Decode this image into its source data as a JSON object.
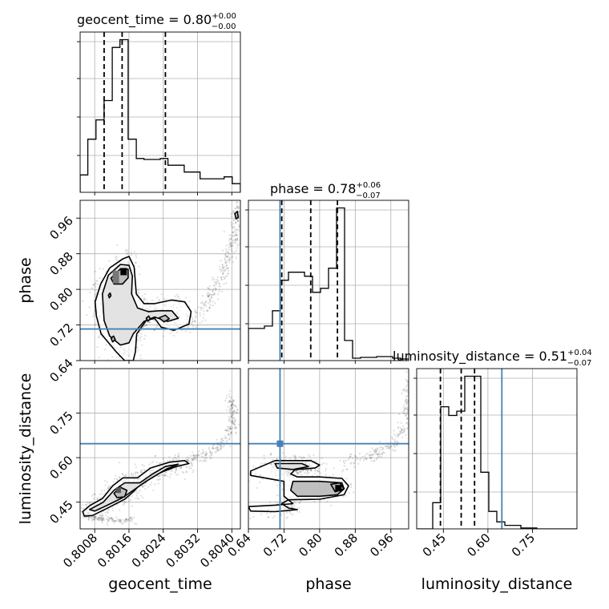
{
  "chart_data": {
    "type": "corner",
    "parameters": [
      "geocent_time",
      "phase",
      "luminosity_distance"
    ],
    "axis_labels": {
      "geocent_time": "geocent_time",
      "phase": "phase",
      "luminosity_distance": "luminosity_distance"
    },
    "ranges": {
      "geocent_time": [
        0.80046,
        0.8042
      ],
      "phase": [
        0.64,
        1.0
      ],
      "luminosity_distance": [
        0.36,
        0.9
      ]
    },
    "ticks": {
      "geocent_time": [
        0.8008,
        0.8016,
        0.8024,
        0.8032,
        0.804
      ],
      "phase": [
        0.64,
        0.72,
        0.8,
        0.88,
        0.96
      ],
      "luminosity_distance": [
        0.45,
        0.6,
        0.75
      ]
    },
    "tick_labels": {
      "geocent_time": [
        "0.8008",
        "0.8016",
        "0.8024",
        "0.8032",
        "0.8040"
      ],
      "phase": [
        "0.64",
        "0.72",
        "0.80",
        "0.88",
        "0.96"
      ],
      "luminosity_distance": [
        "0.45",
        "0.60",
        "0.75"
      ]
    },
    "truths": {
      "geocent_time": null,
      "phase": 0.711,
      "luminosity_distance": 0.647
    },
    "titles": [
      {
        "param": "geocent_time",
        "text": "geocent_time = 0.80",
        "sup": "+0.00",
        "sub": "−0.00"
      },
      {
        "param": "phase",
        "text": "phase = 0.78",
        "sup": "+0.06",
        "sub": "−0.07"
      },
      {
        "param": "luminosity_distance",
        "text": "luminosity_distance = 0.51",
        "sup": "+0.04",
        "sub": "−0.07"
      }
    ],
    "quantiles": {
      "geocent_time": [
        0.80102,
        0.80144,
        0.80245
      ],
      "phase": [
        0.715,
        0.78,
        0.84
      ],
      "luminosity_distance": [
        0.44,
        0.51,
        0.555
      ]
    },
    "histograms": {
      "geocent_time": {
        "edges": [
          0.80046,
          0.80064,
          0.80083,
          0.80102,
          0.80121,
          0.80139,
          0.80158,
          0.80177,
          0.80195,
          0.80214,
          0.80233,
          0.80251,
          0.8027,
          0.80289,
          0.80307,
          0.80326,
          0.80345,
          0.80364,
          0.80382,
          0.80401,
          0.8042
        ],
        "counts": [
          18,
          55,
          75,
          95,
          150,
          158,
          55,
          35,
          34,
          34,
          35,
          28,
          28,
          21,
          21,
          14,
          14,
          14,
          16,
          9
        ]
      },
      "phase": {
        "edges": [
          0.64,
          0.658,
          0.676,
          0.694,
          0.712,
          0.73,
          0.748,
          0.766,
          0.784,
          0.802,
          0.82,
          0.838,
          0.856,
          0.874,
          0.892,
          0.91,
          0.928,
          0.946,
          0.964,
          0.982,
          1.0
        ],
        "counts": [
          40,
          40,
          43,
          62,
          100,
          110,
          110,
          105,
          85,
          90,
          115,
          190,
          25,
          3,
          4,
          4,
          5,
          5,
          3,
          2
        ]
      },
      "luminosity_distance": {
        "edges": [
          0.36,
          0.387,
          0.414,
          0.441,
          0.468,
          0.495,
          0.522,
          0.549,
          0.576,
          0.603,
          0.63,
          0.657,
          0.684,
          0.711,
          0.738,
          0.765,
          0.792,
          0.819,
          0.846,
          0.873,
          0.9
        ],
        "counts": [
          0,
          0,
          30,
          140,
          130,
          135,
          175,
          175,
          65,
          20,
          8,
          4,
          4,
          1,
          1,
          0,
          0,
          0,
          0,
          0
        ]
      }
    },
    "contours": {
      "geocent_time_vs_phase": [
        [
          [
            0.80081,
            0.772
          ],
          [
            0.80094,
            0.812
          ],
          [
            0.80115,
            0.848
          ],
          [
            0.80145,
            0.868
          ],
          [
            0.8016,
            0.874
          ],
          [
            0.80172,
            0.85
          ],
          [
            0.80177,
            0.79
          ],
          [
            0.80195,
            0.768
          ],
          [
            0.8022,
            0.768
          ],
          [
            0.8026,
            0.776
          ],
          [
            0.8029,
            0.772
          ],
          [
            0.80305,
            0.75
          ],
          [
            0.803,
            0.722
          ],
          [
            0.80265,
            0.708
          ],
          [
            0.80235,
            0.715
          ],
          [
            0.8022,
            0.735
          ],
          [
            0.802,
            0.73
          ],
          [
            0.80178,
            0.7
          ],
          [
            0.80175,
            0.66
          ],
          [
            0.8017,
            0.64
          ],
          [
            0.8015,
            0.64
          ],
          [
            0.8013,
            0.66
          ],
          [
            0.80095,
            0.7
          ],
          [
            0.80084,
            0.74
          ],
          [
            0.80081,
            0.772
          ]
        ],
        [
          [
            0.80098,
            0.79
          ],
          [
            0.80112,
            0.832
          ],
          [
            0.8014,
            0.856
          ],
          [
            0.8016,
            0.854
          ],
          [
            0.80168,
            0.83
          ],
          [
            0.80166,
            0.79
          ],
          [
            0.8018,
            0.758
          ],
          [
            0.80205,
            0.75
          ],
          [
            0.8023,
            0.752
          ],
          [
            0.8026,
            0.752
          ],
          [
            0.80275,
            0.735
          ],
          [
            0.8025,
            0.728
          ],
          [
            0.8022,
            0.738
          ],
          [
            0.80195,
            0.728
          ],
          [
            0.8017,
            0.7
          ],
          [
            0.8016,
            0.68
          ],
          [
            0.8014,
            0.675
          ],
          [
            0.80115,
            0.695
          ],
          [
            0.80102,
            0.73
          ],
          [
            0.80098,
            0.79
          ]
        ],
        [
          [
            0.80118,
            0.825
          ],
          [
            0.8014,
            0.846
          ],
          [
            0.80158,
            0.845
          ],
          [
            0.80158,
            0.826
          ],
          [
            0.80145,
            0.812
          ],
          [
            0.80125,
            0.812
          ],
          [
            0.80118,
            0.825
          ]
        ],
        [
          [
            0.80112,
            0.787
          ],
          [
            0.80116,
            0.792
          ],
          [
            0.80118,
            0.786
          ],
          [
            0.80114,
            0.781
          ],
          [
            0.80112,
            0.787
          ]
        ],
        [
          [
            0.80118,
            0.69
          ],
          [
            0.80124,
            0.695
          ],
          [
            0.80128,
            0.687
          ],
          [
            0.80122,
            0.682
          ],
          [
            0.80118,
            0.69
          ]
        ],
        [
          [
            0.8023,
            0.736
          ],
          [
            0.80245,
            0.742
          ],
          [
            0.80254,
            0.734
          ],
          [
            0.80242,
            0.727
          ],
          [
            0.8023,
            0.736
          ]
        ],
        [
          [
            0.802,
            0.735
          ],
          [
            0.80206,
            0.74
          ],
          [
            0.8021,
            0.733
          ],
          [
            0.80204,
            0.729
          ],
          [
            0.802,
            0.735
          ]
        ],
        [
          [
            0.80407,
            0.97
          ],
          [
            0.80413,
            0.975
          ],
          [
            0.80415,
            0.962
          ],
          [
            0.8041,
            0.958
          ],
          [
            0.80407,
            0.97
          ]
        ]
      ],
      "geocent_time_vs_luminosity_distance": [
        [
          [
            0.80052,
            0.418
          ],
          [
            0.8007,
            0.44
          ],
          [
            0.80098,
            0.462
          ],
          [
            0.80122,
            0.505
          ],
          [
            0.80146,
            0.532
          ],
          [
            0.8018,
            0.532
          ],
          [
            0.8021,
            0.565
          ],
          [
            0.80255,
            0.585
          ],
          [
            0.8029,
            0.59
          ],
          [
            0.803,
            0.58
          ],
          [
            0.8027,
            0.57
          ],
          [
            0.80225,
            0.545
          ],
          [
            0.8019,
            0.515
          ],
          [
            0.8017,
            0.485
          ],
          [
            0.8015,
            0.46
          ],
          [
            0.8011,
            0.43
          ],
          [
            0.80075,
            0.405
          ],
          [
            0.80056,
            0.403
          ],
          [
            0.80052,
            0.418
          ]
        ],
        [
          [
            0.80068,
            0.425
          ],
          [
            0.801,
            0.45
          ],
          [
            0.80125,
            0.49
          ],
          [
            0.8015,
            0.515
          ],
          [
            0.80185,
            0.515
          ],
          [
            0.80215,
            0.545
          ],
          [
            0.80245,
            0.57
          ],
          [
            0.80275,
            0.578
          ],
          [
            0.80248,
            0.562
          ],
          [
            0.802,
            0.52
          ],
          [
            0.8017,
            0.49
          ],
          [
            0.80145,
            0.465
          ],
          [
            0.8011,
            0.44
          ],
          [
            0.8008,
            0.42
          ],
          [
            0.80068,
            0.425
          ]
        ],
        [
          [
            0.80125,
            0.48
          ],
          [
            0.8014,
            0.5
          ],
          [
            0.80155,
            0.49
          ],
          [
            0.8015,
            0.468
          ],
          [
            0.80132,
            0.465
          ],
          [
            0.80125,
            0.48
          ]
        ]
      ],
      "phase_vs_luminosity_distance": [
        [
          [
            0.645,
            0.555
          ],
          [
            0.7,
            0.59
          ],
          [
            0.78,
            0.59
          ],
          [
            0.8,
            0.575
          ],
          [
            0.79,
            0.565
          ],
          [
            0.745,
            0.56
          ],
          [
            0.735,
            0.545
          ],
          [
            0.75,
            0.535
          ],
          [
            0.8,
            0.535
          ],
          [
            0.85,
            0.53
          ],
          [
            0.865,
            0.505
          ],
          [
            0.855,
            0.475
          ],
          [
            0.8,
            0.46
          ],
          [
            0.73,
            0.458
          ],
          [
            0.715,
            0.445
          ],
          [
            0.73,
            0.43
          ],
          [
            0.75,
            0.425
          ],
          [
            0.7,
            0.418
          ],
          [
            0.645,
            0.42
          ],
          [
            0.64,
            0.435
          ],
          [
            0.7,
            0.44
          ],
          [
            0.74,
            0.445
          ],
          [
            0.72,
            0.47
          ],
          [
            0.72,
            0.52
          ],
          [
            0.645,
            0.54
          ],
          [
            0.645,
            0.555
          ]
        ],
        [
          [
            0.7,
            0.58
          ],
          [
            0.76,
            0.58
          ],
          [
            0.775,
            0.57
          ],
          [
            0.74,
            0.56
          ],
          [
            0.705,
            0.565
          ],
          [
            0.7,
            0.58
          ]
        ],
        [
          [
            0.74,
            0.52
          ],
          [
            0.8,
            0.52
          ],
          [
            0.85,
            0.515
          ],
          [
            0.855,
            0.495
          ],
          [
            0.84,
            0.475
          ],
          [
            0.8,
            0.47
          ],
          [
            0.75,
            0.47
          ],
          [
            0.735,
            0.49
          ],
          [
            0.74,
            0.52
          ]
        ],
        [
          [
            0.825,
            0.51
          ],
          [
            0.845,
            0.515
          ],
          [
            0.855,
            0.495
          ],
          [
            0.835,
            0.485
          ],
          [
            0.825,
            0.51
          ]
        ]
      ]
    }
  }
}
